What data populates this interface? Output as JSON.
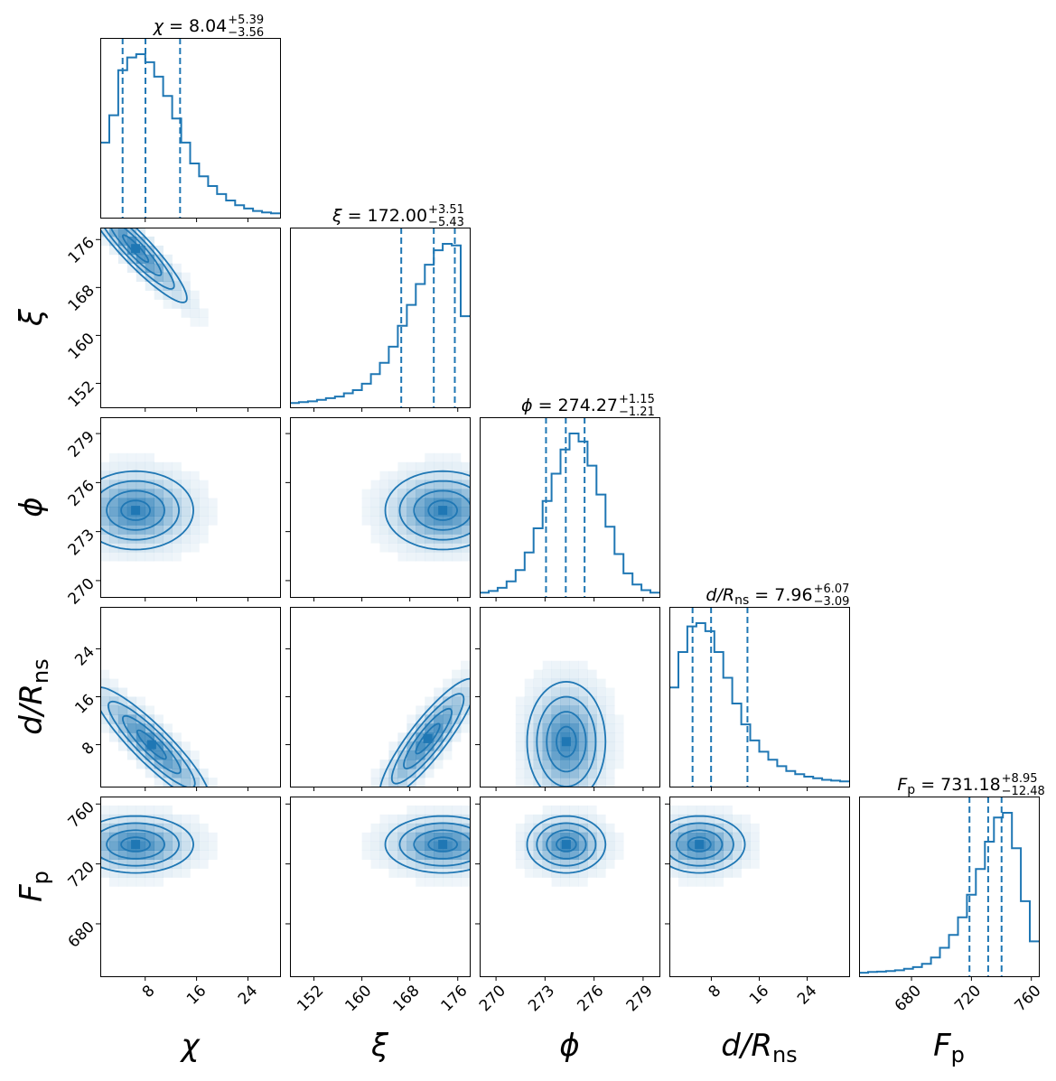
{
  "chart_data": {
    "type": "corner",
    "color": "#1f77b4",
    "parameters": [
      {
        "key": "chi",
        "label": "χ",
        "title": {
          "lhs": "χ",
          "median": "8.04",
          "plus": "+5.39",
          "minus": "−3.56"
        },
        "range": [
          1,
          29
        ],
        "ticks": [
          8,
          16,
          24
        ],
        "tick_labels": [
          "8",
          "16",
          "24"
        ],
        "quantiles": [
          4.48,
          8.04,
          13.43
        ],
        "hist": [
          0.45,
          0.62,
          0.9,
          0.98,
          1.0,
          0.95,
          0.86,
          0.74,
          0.6,
          0.45,
          0.32,
          0.24,
          0.18,
          0.13,
          0.09,
          0.06,
          0.04,
          0.025,
          0.015,
          0.01
        ]
      },
      {
        "key": "xi",
        "label": "ξ",
        "title": {
          "lhs": "ξ",
          "median": "172.00",
          "plus": "+3.51",
          "minus": "−5.43"
        },
        "range": [
          148,
          178
        ],
        "ticks": [
          152,
          160,
          168,
          176
        ],
        "tick_labels": [
          "152",
          "160",
          "168",
          "176"
        ],
        "quantiles": [
          166.57,
          172.0,
          175.51
        ],
        "hist": [
          0.01,
          0.015,
          0.02,
          0.03,
          0.04,
          0.05,
          0.07,
          0.09,
          0.13,
          0.19,
          0.26,
          0.36,
          0.49,
          0.62,
          0.75,
          0.87,
          0.96,
          1.0,
          0.99,
          0.55
        ]
      },
      {
        "key": "phi",
        "label": "ϕ",
        "title": {
          "lhs": "ϕ",
          "median": "274.27",
          "plus": "+1.15",
          "minus": "−1.21"
        },
        "range": [
          269,
          280
        ],
        "ticks": [
          270,
          273,
          276,
          279
        ],
        "tick_labels": [
          "270",
          "273",
          "276",
          "279"
        ],
        "quantiles": [
          273.06,
          274.27,
          275.42
        ],
        "hist": [
          0.01,
          0.02,
          0.04,
          0.08,
          0.15,
          0.26,
          0.41,
          0.58,
          0.75,
          0.9,
          1.0,
          0.95,
          0.8,
          0.62,
          0.42,
          0.25,
          0.13,
          0.06,
          0.025,
          0.01
        ]
      },
      {
        "key": "d",
        "label": "d/R",
        "label_sub": "ns",
        "title": {
          "lhs": "d/R",
          "lhs_sub": "ns",
          "median": "7.96",
          "plus": "+6.07",
          "minus": "−3.09"
        },
        "range": [
          1,
          31
        ],
        "ticks": [
          8,
          16,
          24
        ],
        "tick_labels": [
          "8",
          "16",
          "24"
        ],
        "quantiles": [
          4.87,
          7.96,
          14.03
        ],
        "hist": [
          0.6,
          0.82,
          0.98,
          1.0,
          0.95,
          0.82,
          0.66,
          0.5,
          0.37,
          0.27,
          0.2,
          0.15,
          0.11,
          0.08,
          0.06,
          0.045,
          0.035,
          0.025,
          0.02,
          0.015
        ]
      },
      {
        "key": "Fp",
        "label": "F",
        "label_sub": "p",
        "title": {
          "lhs": "F",
          "lhs_sub": "p",
          "median": "731.18",
          "plus": "+8.95",
          "minus": "−12.48"
        },
        "range": [
          645,
          765
        ],
        "ticks": [
          680,
          720,
          760
        ],
        "tick_labels": [
          "680",
          "720",
          "760"
        ],
        "quantiles": [
          718.7,
          731.18,
          740.13
        ],
        "hist": [
          0.005,
          0.01,
          0.012,
          0.015,
          0.02,
          0.03,
          0.04,
          0.06,
          0.1,
          0.16,
          0.24,
          0.35,
          0.49,
          0.65,
          0.82,
          0.97,
          1.0,
          0.78,
          0.45,
          0.2
        ]
      }
    ],
    "pairs": [
      {
        "row": 1,
        "col": 0,
        "mean": [
          6.5,
          174.5
        ],
        "sigma": [
          4.0,
          4.5
        ],
        "rho": -0.92
      },
      {
        "row": 2,
        "col": 0,
        "mean": [
          6.5,
          274.3
        ],
        "sigma": [
          4.5,
          1.2
        ],
        "rho": 0.0
      },
      {
        "row": 2,
        "col": 1,
        "mean": [
          173.5,
          274.3
        ],
        "sigma": [
          4.8,
          1.2
        ],
        "rho": 0.0
      },
      {
        "row": 3,
        "col": 0,
        "mean": [
          9.0,
          8.0
        ],
        "sigma": [
          4.5,
          4.8
        ],
        "rho": -0.9
      },
      {
        "row": 3,
        "col": 1,
        "mean": [
          171.0,
          9.0
        ],
        "sigma": [
          4.0,
          5.0
        ],
        "rho": 0.88
      },
      {
        "row": 3,
        "col": 2,
        "mean": [
          274.3,
          8.5
        ],
        "sigma": [
          1.2,
          5.0
        ],
        "rho": 0.0
      },
      {
        "row": 4,
        "col": 0,
        "mean": [
          6.5,
          733.0
        ],
        "sigma": [
          4.5,
          9.5
        ],
        "rho": 0.0
      },
      {
        "row": 4,
        "col": 1,
        "mean": [
          173.5,
          733.0
        ],
        "sigma": [
          4.8,
          9.5
        ],
        "rho": 0.0
      },
      {
        "row": 4,
        "col": 2,
        "mean": [
          274.3,
          733.0
        ],
        "sigma": [
          1.2,
          9.5
        ],
        "rho": 0.0
      },
      {
        "row": 4,
        "col": 3,
        "mean": [
          6.0,
          733.0
        ],
        "sigma": [
          3.8,
          9.5
        ],
        "rho": 0.0
      }
    ],
    "contour_levels_sigma": [
      0.5,
      1.0,
      1.5,
      2.0
    ]
  }
}
